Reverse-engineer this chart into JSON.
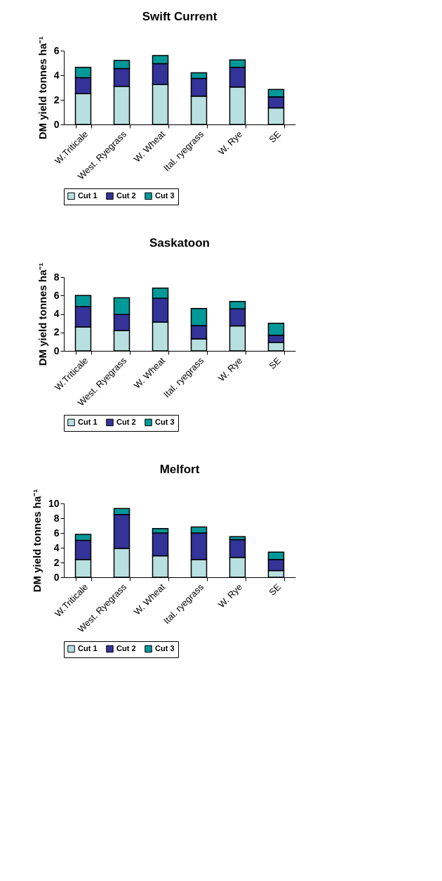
{
  "chart_data": [
    {
      "type": "bar",
      "title": "Swift Current",
      "ylabel": "DM yield tonnes ha⁻¹",
      "categories": [
        "W.Triticale",
        "West. Ryegrass",
        "W. Wheat",
        "Ital. ryegrass",
        "W. Rye",
        "SE"
      ],
      "stacked": true,
      "ylim": [
        0,
        6
      ],
      "yticks": [
        0,
        2,
        4,
        6
      ],
      "grid": false,
      "legend": "bottom",
      "series": [
        {
          "name": "Cut 1",
          "color": "#b8e0e0",
          "values": [
            2.5,
            3.1,
            3.25,
            2.3,
            3.05,
            1.35
          ]
        },
        {
          "name": "Cut 2",
          "color": "#333399",
          "values": [
            1.3,
            1.45,
            1.7,
            1.45,
            1.6,
            0.9
          ]
        },
        {
          "name": "Cut 3",
          "color": "#009999",
          "values": [
            0.85,
            0.65,
            0.65,
            0.45,
            0.6,
            0.6
          ]
        }
      ]
    },
    {
      "type": "bar",
      "title": "Saskatoon",
      "ylabel": "DM yield tonnes ha⁻¹",
      "categories": [
        "W.Triticale",
        "West. Ryegrass",
        "W. Wheat",
        "Ital. ryegrass",
        "W. Rye",
        "SE"
      ],
      "stacked": true,
      "ylim": [
        0,
        8
      ],
      "yticks": [
        0,
        2,
        4,
        6,
        8
      ],
      "grid": false,
      "legend": "bottom",
      "series": [
        {
          "name": "Cut 1",
          "color": "#b8e0e0",
          "values": [
            2.6,
            2.2,
            3.1,
            1.3,
            2.7,
            0.9
          ]
        },
        {
          "name": "Cut 2",
          "color": "#333399",
          "values": [
            2.2,
            1.75,
            2.6,
            1.45,
            1.85,
            0.8
          ]
        },
        {
          "name": "Cut 3",
          "color": "#009999",
          "values": [
            1.2,
            1.8,
            1.1,
            1.85,
            0.8,
            1.3
          ]
        }
      ]
    },
    {
      "type": "bar",
      "title": "Melfort",
      "ylabel": "DM yield tonnes ha⁻¹",
      "categories": [
        "W.Triticale",
        "West. Ryegrass",
        "W. Wheat",
        "Ital. ryegrass",
        "W. Rye",
        "SE"
      ],
      "stacked": true,
      "ylim": [
        0,
        10
      ],
      "yticks": [
        0,
        2,
        4,
        6,
        8,
        10
      ],
      "grid": false,
      "legend": "bottom",
      "series": [
        {
          "name": "Cut 1",
          "color": "#b8e0e0",
          "values": [
            2.4,
            3.9,
            2.9,
            2.4,
            2.7,
            0.9
          ]
        },
        {
          "name": "Cut 2",
          "color": "#333399",
          "values": [
            2.6,
            4.6,
            3.1,
            3.6,
            2.4,
            1.5
          ]
        },
        {
          "name": "Cut 3",
          "color": "#009999",
          "values": [
            0.8,
            0.8,
            0.6,
            0.8,
            0.4,
            1.0
          ]
        }
      ]
    }
  ]
}
